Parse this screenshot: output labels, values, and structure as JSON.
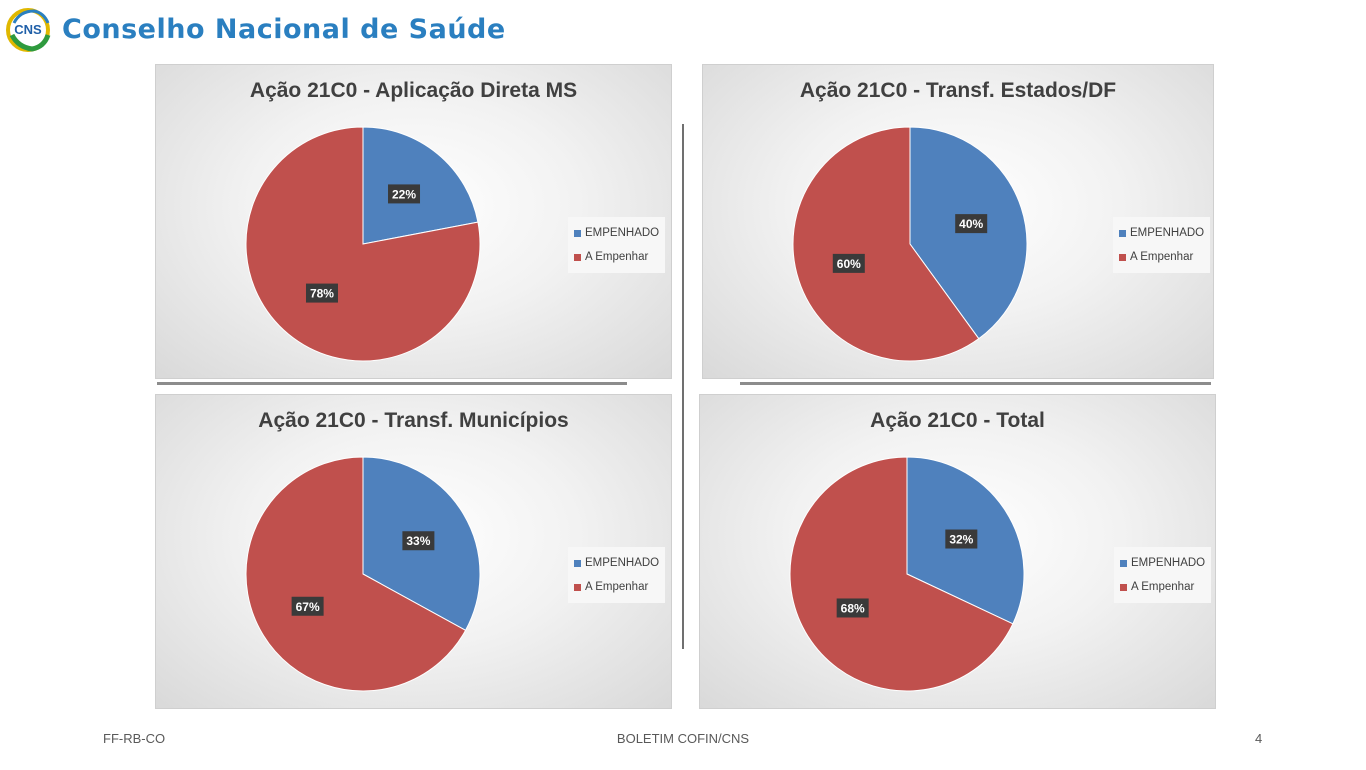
{
  "header": {
    "title": "Conselho Nacional de Saúde",
    "logo_text": "CNS"
  },
  "colors": {
    "empenhado": "#4f81bd",
    "a_empenhar": "#c0504d",
    "title_blue": "#2a7fc0"
  },
  "chart_data": [
    {
      "type": "pie",
      "title": "Ação 21C0 - Aplicação Direta MS",
      "categories": [
        "EMPENHADO",
        "A Empenhar"
      ],
      "values": [
        22,
        78
      ],
      "labels": [
        "22%",
        "78%"
      ],
      "legend": "right"
    },
    {
      "type": "pie",
      "title": "Ação 21C0 - Transf. Estados/DF",
      "categories": [
        "EMPENHADO",
        "A Empenhar"
      ],
      "values": [
        40,
        60
      ],
      "labels": [
        "40%",
        "60%"
      ],
      "legend": "right"
    },
    {
      "type": "pie",
      "title": "Ação 21C0 - Transf. Municípios",
      "categories": [
        "EMPENHADO",
        "A Empenhar"
      ],
      "values": [
        33,
        67
      ],
      "labels": [
        "33%",
        "67%"
      ],
      "legend": "right"
    },
    {
      "type": "pie",
      "title": "Ação 21C0 - Total",
      "categories": [
        "EMPENHADO",
        "A Empenhar"
      ],
      "values": [
        32,
        68
      ],
      "labels": [
        "32%",
        "68%"
      ],
      "legend": "right"
    }
  ],
  "footer": {
    "left": "FF-RB-CO",
    "center": "BOLETIM COFIN/CNS",
    "page_number": "4"
  }
}
